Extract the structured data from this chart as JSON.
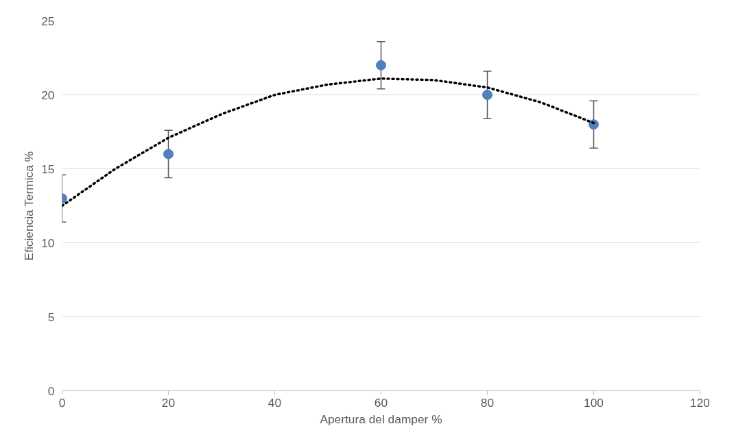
{
  "chart_data": {
    "type": "scatter",
    "xlabel": "Apertura del damper %",
    "ylabel": "Eficiencia Termica %",
    "xlim": [
      0,
      120
    ],
    "xticks": [
      0,
      20,
      40,
      60,
      80,
      100,
      120
    ],
    "ylim": [
      0,
      25
    ],
    "yticks": [
      0,
      5,
      10,
      15,
      20,
      25
    ],
    "grid": "y",
    "series": [
      {
        "color": "#4f81bd",
        "marker": "circle",
        "x": [
          0,
          20,
          60,
          80,
          100
        ],
        "values": [
          13,
          16,
          22,
          20,
          18
        ],
        "errors": [
          1.6,
          1.6,
          1.6,
          1.6,
          1.6
        ]
      },
      {
        "type": "line",
        "color": "#000000",
        "marker": "none",
        "line_style": "dotted",
        "x": [
          0,
          10,
          20,
          30,
          40,
          50,
          60,
          70,
          80,
          90,
          100
        ],
        "values": [
          12.5,
          15.0,
          17.1,
          18.7,
          20.0,
          20.7,
          21.1,
          21.0,
          20.5,
          19.5,
          18.1
        ]
      }
    ]
  }
}
